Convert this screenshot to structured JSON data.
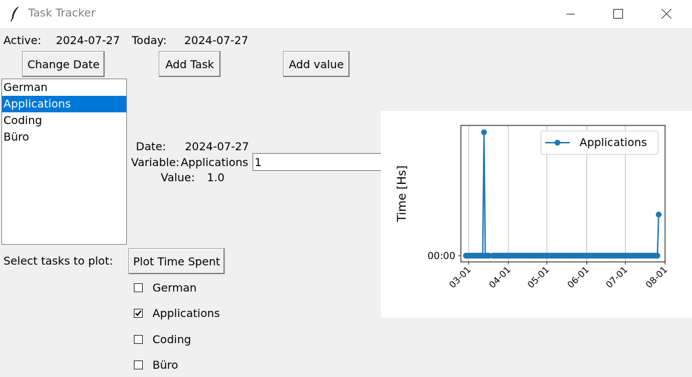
{
  "window": {
    "title": "Task Tracker"
  },
  "header": {
    "active_label": "Active:",
    "active_date": "2024-07-27",
    "today_label": "Today:",
    "today_date": "2024-07-27"
  },
  "buttons": {
    "change_date": "Change Date",
    "add_task": "Add Task",
    "add_value": "Add value",
    "plot_time_spent": "Plot Time Spent"
  },
  "tasks": {
    "items": [
      "German",
      "Applications",
      "Coding",
      "Büro"
    ],
    "selected": "Applications"
  },
  "details": {
    "date_label": "Date:",
    "date_value": "2024-07-27",
    "variable_label": "Variable:",
    "variable_value": "Applications",
    "value_label": "Value:",
    "value_value": "1.0",
    "input_value": "1"
  },
  "plot_select": {
    "label": "Select tasks to plot:",
    "checkboxes": [
      {
        "label": "German",
        "checked": false
      },
      {
        "label": "Applications",
        "checked": true
      },
      {
        "label": "Coding",
        "checked": false
      },
      {
        "label": "Büro",
        "checked": false
      }
    ]
  },
  "chart_data": {
    "type": "line",
    "ylabel": "Time [Hs]",
    "xlabel": "",
    "title": "",
    "y_tick_labels": [
      "00:00"
    ],
    "x_tick_labels": [
      "03-01",
      "04-01",
      "05-01",
      "06-01",
      "07-01",
      "08-01"
    ],
    "x_range": [
      "2024-02-24",
      "2024-08-01"
    ],
    "grid": "vertical",
    "legend_position": "top-right",
    "series": [
      {
        "name": "Applications",
        "color": "#1f77b4",
        "segments": [
          [
            [
              "2024-02-28",
              0
            ],
            [
              "2024-03-12",
              0
            ],
            [
              "2024-03-13",
              3.0
            ],
            [
              "2024-03-14",
              0
            ],
            [
              "2024-03-17",
              0
            ]
          ],
          [
            [
              "2024-03-20",
              0
            ],
            [
              "2024-07-26",
              0
            ],
            [
              "2024-07-27",
              1.0
            ]
          ]
        ]
      }
    ]
  }
}
